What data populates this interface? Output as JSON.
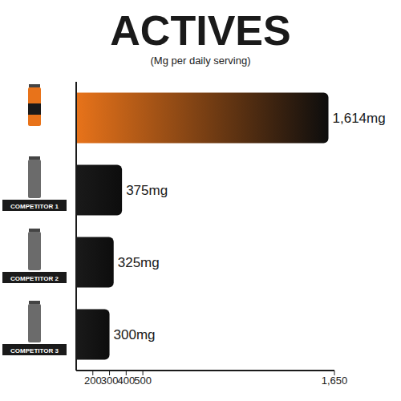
{
  "chart_data": {
    "type": "bar",
    "orientation": "horizontal",
    "title": "ACTIVES",
    "subtitle": "(Mg per daily serving)",
    "categories": [
      null,
      "COMPETITOR 1",
      "COMPETITOR 2",
      "COMPETITOR 3"
    ],
    "values": [
      1614,
      375,
      325,
      300
    ],
    "value_labels": [
      "1,614mg",
      "375mg",
      "325mg",
      "300mg"
    ],
    "data_labels": true,
    "colors": [
      "#e8731a",
      "#1a1a1a",
      "#1a1a1a",
      "#1a1a1a"
    ],
    "xlim": [
      100,
      1650
    ],
    "xticks": [
      200,
      300,
      400,
      500,
      {
        "value": 1650,
        "label": "1,650"
      }
    ],
    "grid": false
  }
}
